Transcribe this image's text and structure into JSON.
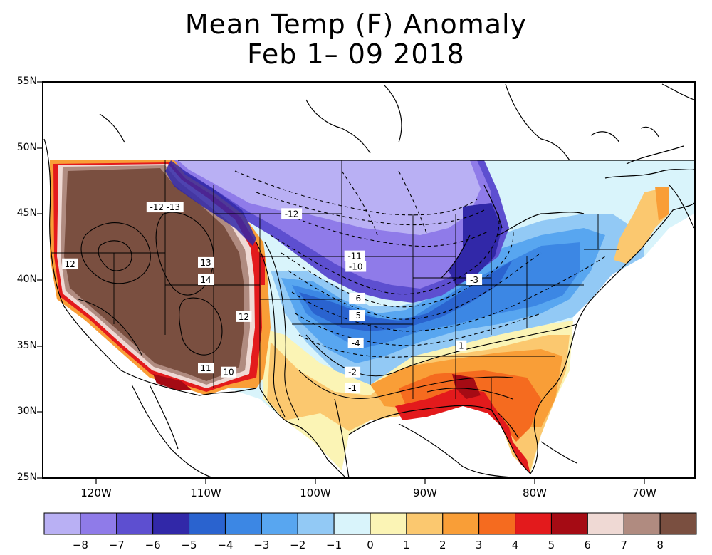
{
  "title_line1": "Mean Temp (F) Anomaly",
  "title_line2": "Feb 1– 09 2018",
  "lat_labels": [
    "55N",
    "50N",
    "45N",
    "40N",
    "35N",
    "30N",
    "25N"
  ],
  "lon_labels": [
    "120W",
    "110W",
    "100W",
    "90W",
    "80W",
    "70W"
  ],
  "legend": {
    "labels": [
      "−8",
      "−7",
      "−6",
      "−5",
      "−4",
      "−3",
      "−2",
      "−1",
      "0",
      "1",
      "2",
      "3",
      "4",
      "5",
      "6",
      "7",
      "8"
    ],
    "colors": [
      "#b9b0f4",
      "#8f7be9",
      "#5d4fd0",
      "#3128a8",
      "#2a63cf",
      "#3c87e4",
      "#58a6f0",
      "#92c9f5",
      "#d9f4fb",
      "#fbf4b5",
      "#fbc86f",
      "#f99e37",
      "#f56b1f",
      "#e31a1c",
      "#a50b14",
      "#efd9d4",
      "#b08b80",
      "#7a4f40"
    ]
  },
  "contour_labels": [
    {
      "text": "-12",
      "lon": -114.5,
      "lat": 45.5
    },
    {
      "text": "-13",
      "lon": -113.0,
      "lat": 45.5
    },
    {
      "text": "12",
      "lon": -122.5,
      "lat": 41.2
    },
    {
      "text": "13",
      "lon": -110.0,
      "lat": 41.3
    },
    {
      "text": "14",
      "lon": -110.0,
      "lat": 40.0
    },
    {
      "text": "12",
      "lon": -106.5,
      "lat": 37.2
    },
    {
      "text": "11",
      "lon": -110.0,
      "lat": 33.3
    },
    {
      "text": "10",
      "lon": -107.9,
      "lat": 33.0
    },
    {
      "text": "-12",
      "lon": -102.1,
      "lat": 45.0
    },
    {
      "text": "-11",
      "lon": -96.3,
      "lat": 41.8
    },
    {
      "text": "-10",
      "lon": -96.2,
      "lat": 41.0
    },
    {
      "text": "-6",
      "lon": -96.1,
      "lat": 38.6
    },
    {
      "text": "-5",
      "lon": -96.1,
      "lat": 37.3
    },
    {
      "text": "-4",
      "lon": -96.2,
      "lat": 35.2
    },
    {
      "text": "-3",
      "lon": -85.3,
      "lat": 40.0
    },
    {
      "text": "-2",
      "lon": -96.5,
      "lat": 33.0
    },
    {
      "text": "-1",
      "lon": -96.5,
      "lat": 31.8
    },
    {
      "text": "1",
      "lon": -86.5,
      "lat": 35.0
    }
  ]
}
